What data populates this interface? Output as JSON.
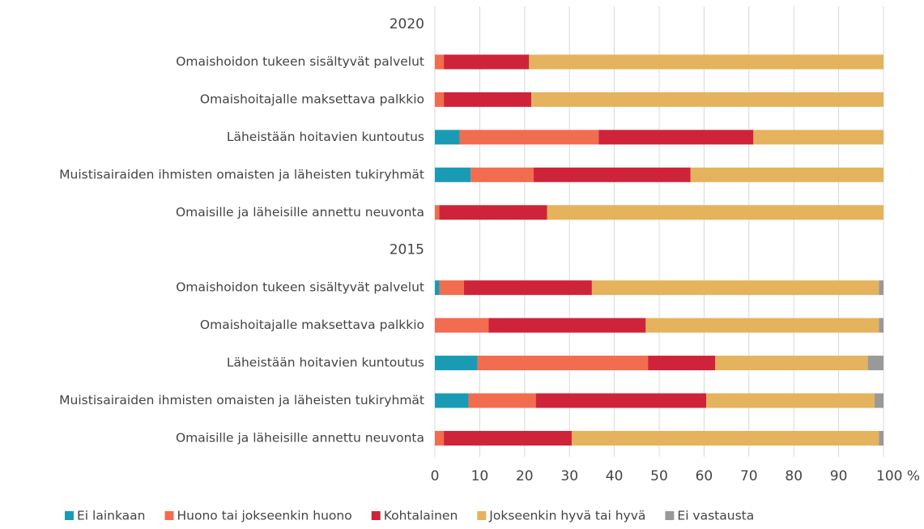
{
  "chart_data": {
    "type": "stacked-barh",
    "categories": [
      "2020",
      "Omaishoidon tukeen sisältyvät palvelut",
      "Omaishoitajalle maksettava palkkio",
      "Läheistään hoitavien kuntoutus",
      "Muistisairaiden ihmisten omaisten ja läheisten tukiryhmät",
      "Omaisille ja läheisille annettu neuvonta",
      "2015",
      "Omaishoidon tukeen sisältyvät palvelut",
      "Omaishoitajalle maksettava palkkio",
      "Läheistään hoitavien kuntoutus",
      "Muistisairaiden ihmisten omaisten ja läheisten tukiryhmät",
      "Omaisille ja läheisille annettu neuvonta"
    ],
    "series": [
      {
        "name": "Ei lainkaan",
        "color": "#1a9bb5",
        "values": [
          null,
          0,
          0,
          5.5,
          8,
          0,
          null,
          1,
          0,
          9.5,
          7.5,
          0
        ]
      },
      {
        "name": "Huono tai jokseenkin huono",
        "color": "#f26c4f",
        "values": [
          null,
          2,
          2,
          31,
          14,
          1,
          null,
          5.5,
          12,
          38,
          15,
          2
        ]
      },
      {
        "name": "Kohtalainen",
        "color": "#cf233a",
        "values": [
          null,
          19,
          19.5,
          34.5,
          35,
          24,
          null,
          28.5,
          35,
          15,
          38,
          28.5
        ]
      },
      {
        "name": "Jokseenkin hyvä tai hyvä",
        "color": "#e5b25d",
        "values": [
          null,
          79,
          78.5,
          29,
          43,
          75,
          null,
          64,
          52,
          34,
          37.5,
          68.5
        ]
      },
      {
        "name": "Ei vastausta",
        "color": "#999999",
        "values": [
          null,
          0,
          0,
          0,
          0,
          0,
          null,
          1,
          1,
          3.5,
          2,
          1
        ]
      }
    ],
    "xlim": [
      0,
      100
    ],
    "xticks": [
      0,
      10,
      20,
      30,
      40,
      50,
      60,
      70,
      80,
      90,
      {
        "value": 100,
        "label": "100 %"
      }
    ],
    "grid": true
  }
}
